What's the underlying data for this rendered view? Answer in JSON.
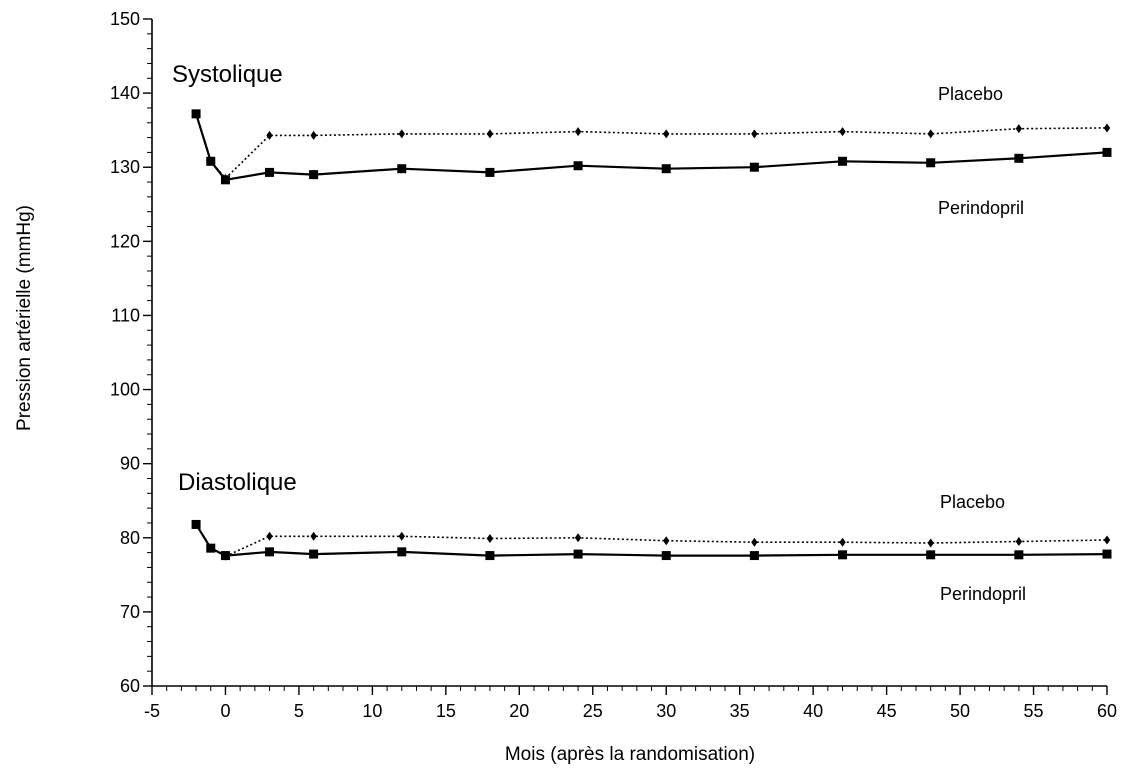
{
  "chart_data": {
    "type": "line",
    "xlabel": "Mois (après la randomisation)",
    "ylabel": "Pression artérielle (mmHg)",
    "xlim": [
      -5,
      60
    ],
    "ylim": [
      60,
      150
    ],
    "x_ticks": [
      -5,
      0,
      5,
      10,
      15,
      20,
      25,
      30,
      35,
      40,
      45,
      50,
      55,
      60
    ],
    "y_ticks": [
      60,
      70,
      80,
      90,
      100,
      110,
      120,
      130,
      140,
      150
    ],
    "grid": false,
    "annotations": {
      "systolic_title": "Systolique",
      "diastolic_title": "Diastolique",
      "sys_placebo_label": "Placebo",
      "sys_perindopril_label": "Perindopril",
      "dia_placebo_label": "Placebo",
      "dia_perindopril_label": "Perindopril"
    },
    "series": [
      {
        "group": "Systolique",
        "name": "Placebo",
        "style": "dotted",
        "marker": "diamond",
        "color": "#000000",
        "points": [
          [
            -2,
            137.2
          ],
          [
            -1,
            130.8
          ],
          [
            0,
            128.5
          ],
          [
            3,
            134.3
          ],
          [
            6,
            134.3
          ],
          [
            12,
            134.5
          ],
          [
            18,
            134.5
          ],
          [
            24,
            134.8
          ],
          [
            30,
            134.5
          ],
          [
            36,
            134.5
          ],
          [
            42,
            134.8
          ],
          [
            48,
            134.5
          ],
          [
            54,
            135.2
          ],
          [
            60,
            135.3
          ]
        ]
      },
      {
        "group": "Systolique",
        "name": "Perindopril",
        "style": "solid",
        "marker": "square",
        "color": "#000000",
        "points": [
          [
            -2,
            137.2
          ],
          [
            -1,
            130.8
          ],
          [
            0,
            128.3
          ],
          [
            3,
            129.3
          ],
          [
            6,
            129.0
          ],
          [
            12,
            129.8
          ],
          [
            18,
            129.3
          ],
          [
            24,
            130.2
          ],
          [
            30,
            129.8
          ],
          [
            36,
            130.0
          ],
          [
            42,
            130.8
          ],
          [
            48,
            130.6
          ],
          [
            54,
            131.2
          ],
          [
            60,
            132.0
          ]
        ]
      },
      {
        "group": "Diastolique",
        "name": "Placebo",
        "style": "dotted",
        "marker": "diamond",
        "color": "#000000",
        "points": [
          [
            -2,
            81.8
          ],
          [
            -1,
            78.6
          ],
          [
            0,
            77.5
          ],
          [
            3,
            80.2
          ],
          [
            6,
            80.2
          ],
          [
            12,
            80.2
          ],
          [
            18,
            79.9
          ],
          [
            24,
            80.0
          ],
          [
            30,
            79.6
          ],
          [
            36,
            79.4
          ],
          [
            42,
            79.4
          ],
          [
            48,
            79.3
          ],
          [
            54,
            79.5
          ],
          [
            60,
            79.7
          ]
        ]
      },
      {
        "group": "Diastolique",
        "name": "Perindopril",
        "style": "solid",
        "marker": "square",
        "color": "#000000",
        "points": [
          [
            -2,
            81.8
          ],
          [
            -1,
            78.6
          ],
          [
            0,
            77.6
          ],
          [
            3,
            78.1
          ],
          [
            6,
            77.8
          ],
          [
            12,
            78.1
          ],
          [
            18,
            77.6
          ],
          [
            24,
            77.8
          ],
          [
            30,
            77.6
          ],
          [
            36,
            77.6
          ],
          [
            42,
            77.7
          ],
          [
            48,
            77.7
          ],
          [
            54,
            77.7
          ],
          [
            60,
            77.8
          ]
        ]
      }
    ]
  }
}
